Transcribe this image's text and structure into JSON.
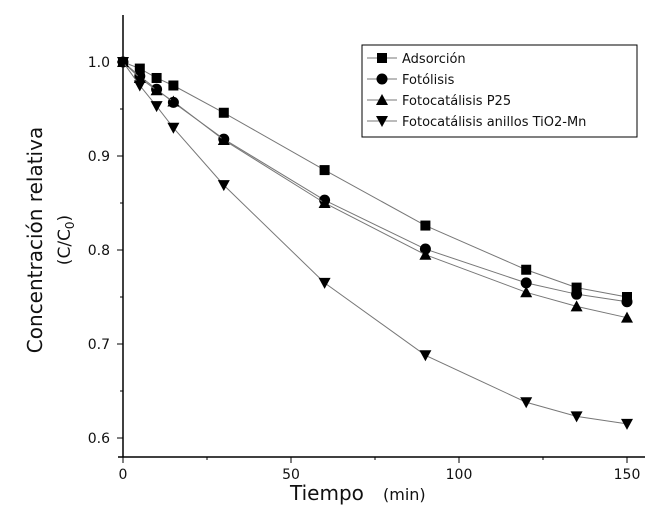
{
  "chart_data": {
    "type": "line",
    "xlabel": "Tiempo",
    "xunit": "(min)",
    "ylabel": "Concentración relativa",
    "ylabel2": "(C/C",
    "ylabel2_sub": "0",
    "ylabel2_end": ")",
    "xlim": [
      -1.5,
      155
    ],
    "ylim": [
      0.58,
      1.05
    ],
    "xticks": [
      0,
      50,
      100,
      150
    ],
    "xtick_labels": [
      "0",
      "50",
      "100",
      "150"
    ],
    "yticks": [
      0.6,
      0.7,
      0.8,
      0.9,
      1.0
    ],
    "ytick_labels": [
      "0.6",
      "0.7",
      "0.8",
      "0.9",
      "1.0"
    ],
    "grid": false,
    "legend_position": "top-right",
    "x": [
      0,
      5,
      10,
      15,
      30,
      60,
      90,
      120,
      135,
      150
    ],
    "series": [
      {
        "name": "Adsorción",
        "marker": "square",
        "values": [
          1.0,
          0.993,
          0.983,
          0.975,
          0.946,
          0.885,
          0.826,
          0.779,
          0.76,
          0.75
        ]
      },
      {
        "name": "Fotólisis",
        "marker": "circle",
        "values": [
          1.0,
          0.985,
          0.971,
          0.957,
          0.918,
          0.853,
          0.801,
          0.765,
          0.753,
          0.745
        ]
      },
      {
        "name": "Fotocatálisis P25",
        "marker": "triangle-up",
        "values": [
          1.0,
          0.983,
          0.97,
          0.958,
          0.917,
          0.85,
          0.795,
          0.755,
          0.74,
          0.728
        ]
      },
      {
        "name": "Fotocatálisis anillos TiO2-Mn",
        "marker": "triangle-down",
        "values": [
          1.0,
          0.975,
          0.953,
          0.93,
          0.869,
          0.765,
          0.688,
          0.638,
          0.623,
          0.615
        ]
      }
    ],
    "colors": {
      "markers": "#000000",
      "lines": "#777777"
    }
  }
}
